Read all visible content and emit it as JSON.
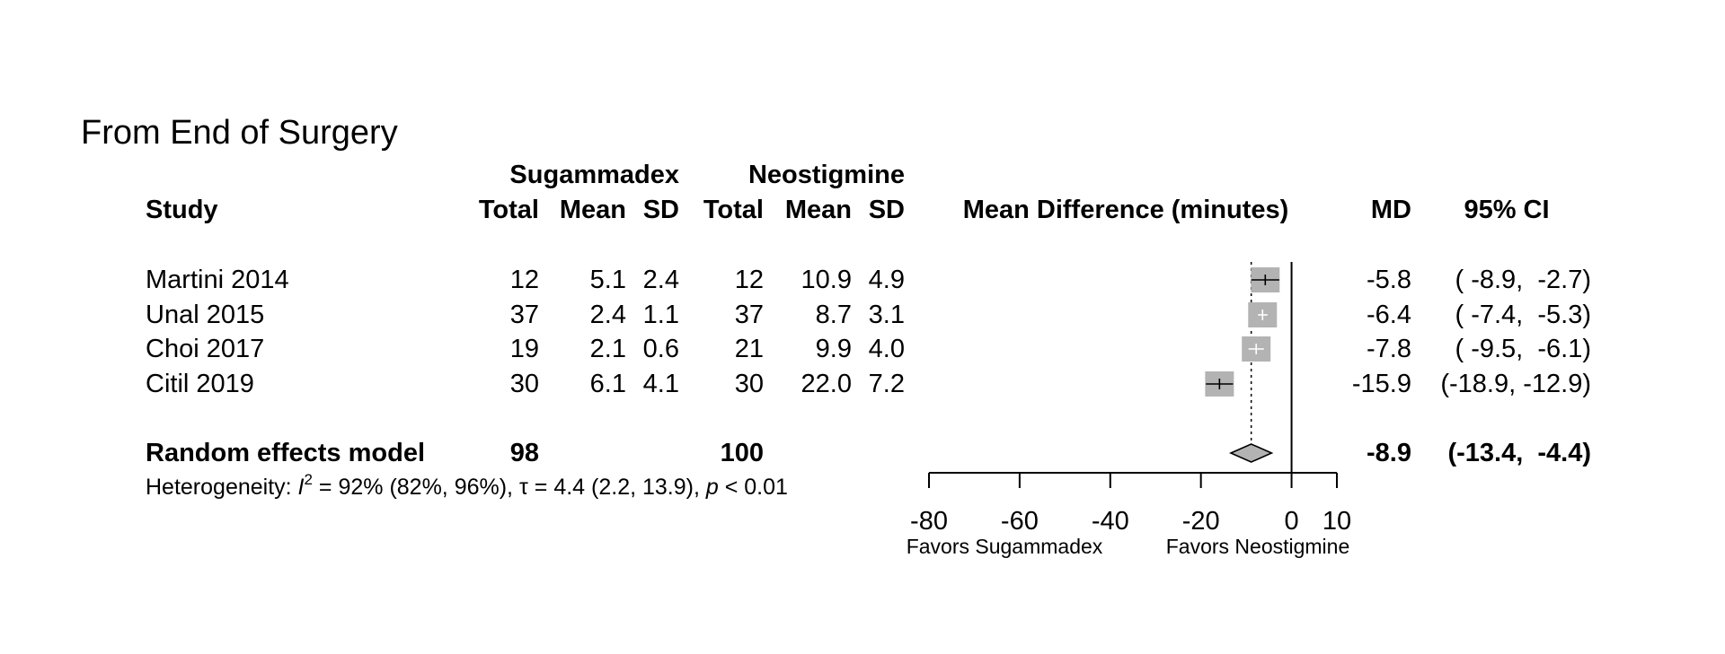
{
  "title": "From End of Surgery",
  "headers": {
    "study": "Study",
    "group1": "Sugammadex",
    "group2": "Neostigmine",
    "total": "Total",
    "mean": "Mean",
    "sd": "SD",
    "effect": "Mean Difference (minutes)",
    "md": "MD",
    "ci": "95% CI"
  },
  "studies": [
    {
      "study": "Martini 2014",
      "n1": "12",
      "mean1": "5.1",
      "sd1": "2.4",
      "n2": "12",
      "mean2": "10.9",
      "sd2": "4.9",
      "md_text": "-5.8",
      "ci_text": "( -8.9,  -2.7)"
    },
    {
      "study": "Unal 2015",
      "n1": "37",
      "mean1": "2.4",
      "sd1": "1.1",
      "n2": "37",
      "mean2": "8.7",
      "sd2": "3.1",
      "md_text": "-6.4",
      "ci_text": "( -7.4,  -5.3)"
    },
    {
      "study": "Choi 2017",
      "n1": "19",
      "mean1": "2.1",
      "sd1": "0.6",
      "n2": "21",
      "mean2": "9.9",
      "sd2": "4.0",
      "md_text": "-7.8",
      "ci_text": "( -9.5,  -6.1)"
    },
    {
      "study": "Citil 2019",
      "n1": "30",
      "mean1": "6.1",
      "sd1": "4.1",
      "n2": "30",
      "mean2": "22.0",
      "sd2": "7.2",
      "md_text": "-15.9",
      "ci_text": "(-18.9, -12.9)"
    }
  ],
  "pooled": {
    "label": "Random effects model",
    "n1": "98",
    "n2": "100",
    "md_text": "-8.9",
    "ci_text": "(-13.4,  -4.4)"
  },
  "heterogeneity": {
    "prefix": "Heterogeneity: ",
    "i2_symbol": "I",
    "i2_sup": "2",
    "i2_rest": " = 92% (82%, 96%), τ = 4.4 (2.2, 13.9), ",
    "p_symbol": "p",
    "p_rest": " < 0.01"
  },
  "axis": {
    "favors_left": "Favors Sugammadex",
    "favors_right": "Favors Neostigmine"
  },
  "colors": {
    "box": "#b3b3b3",
    "diamond": "#b3b3b3"
  },
  "chart_data": {
    "type": "forest",
    "xlabel": "Mean Difference (minutes)",
    "xlim": [
      -80,
      10
    ],
    "ticks": [
      -80,
      -60,
      -40,
      -20,
      0,
      10
    ],
    "null_value": 0,
    "studies": [
      {
        "name": "Martini 2014",
        "md": -5.8,
        "ci": [
          -8.9,
          -2.7
        ]
      },
      {
        "name": "Unal 2015",
        "md": -6.4,
        "ci": [
          -7.4,
          -5.3
        ]
      },
      {
        "name": "Choi 2017",
        "md": -7.8,
        "ci": [
          -9.5,
          -6.1
        ]
      },
      {
        "name": "Citil 2019",
        "md": -15.9,
        "ci": [
          -18.9,
          -12.9
        ]
      }
    ],
    "pooled": {
      "name": "Random effects model",
      "md": -8.9,
      "ci": [
        -13.4,
        -4.4
      ]
    }
  }
}
